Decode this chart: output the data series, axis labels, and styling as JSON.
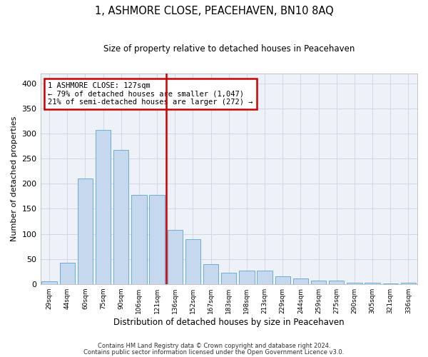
{
  "title1": "1, ASHMORE CLOSE, PEACEHAVEN, BN10 8AQ",
  "title2": "Size of property relative to detached houses in Peacehaven",
  "xlabel": "Distribution of detached houses by size in Peacehaven",
  "ylabel": "Number of detached properties",
  "categories": [
    "29sqm",
    "44sqm",
    "60sqm",
    "75sqm",
    "90sqm",
    "106sqm",
    "121sqm",
    "136sqm",
    "152sqm",
    "167sqm",
    "183sqm",
    "198sqm",
    "213sqm",
    "229sqm",
    "244sqm",
    "259sqm",
    "275sqm",
    "290sqm",
    "305sqm",
    "321sqm",
    "336sqm"
  ],
  "values": [
    5,
    43,
    210,
    307,
    268,
    178,
    178,
    108,
    89,
    39,
    23,
    26,
    27,
    15,
    11,
    6,
    7,
    3,
    2,
    1,
    2
  ],
  "bar_color": "#c5d8ee",
  "bar_edge_color": "#6aaed6",
  "vline_color": "#cc0000",
  "annotation_text": "1 ASHMORE CLOSE: 127sqm\n← 79% of detached houses are smaller (1,047)\n21% of semi-detached houses are larger (272) →",
  "annotation_box_color": "#cc0000",
  "grid_color": "#d0d9e8",
  "background_color": "#eef2f8",
  "footer1": "Contains HM Land Registry data © Crown copyright and database right 2024.",
  "footer2": "Contains public sector information licensed under the Open Government Licence v3.0.",
  "ylim": [
    0,
    420
  ],
  "yticks": [
    0,
    50,
    100,
    150,
    200,
    250,
    300,
    350,
    400
  ]
}
